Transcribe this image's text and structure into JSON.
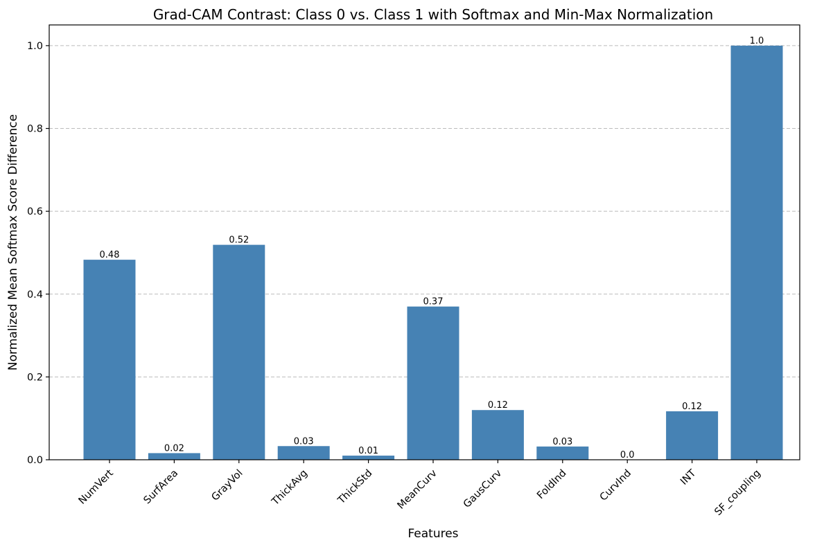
{
  "chart_data": {
    "type": "bar",
    "title": "Grad-CAM Contrast: Class 0 vs. Class 1 with Softmax and Min-Max Normalization",
    "xlabel": "Features",
    "ylabel": "Normalized Mean Softmax Score Difference",
    "categories": [
      "NumVert",
      "SurfArea",
      "GrayVol",
      "ThickAvg",
      "ThickStd",
      "MeanCurv",
      "GausCurv",
      "FoldInd",
      "CurvInd",
      "INT",
      "SF_coupling"
    ],
    "values": [
      0.483,
      0.016,
      0.519,
      0.033,
      0.01,
      0.37,
      0.12,
      0.032,
      0.0,
      0.117,
      1.0
    ],
    "data_labels": [
      "0.48",
      "0.02",
      "0.52",
      "0.03",
      "0.01",
      "0.37",
      "0.12",
      "0.03",
      "0.0",
      "0.12",
      "1.0"
    ],
    "ylim": [
      0,
      1.05
    ],
    "yticks": [
      0.0,
      0.2,
      0.4,
      0.6,
      0.8,
      1.0
    ],
    "ytick_labels": [
      "0.0",
      "0.2",
      "0.4",
      "0.6",
      "0.8",
      "1.0"
    ],
    "grid": "y-dashed",
    "bar_color": "#4682b4"
  }
}
